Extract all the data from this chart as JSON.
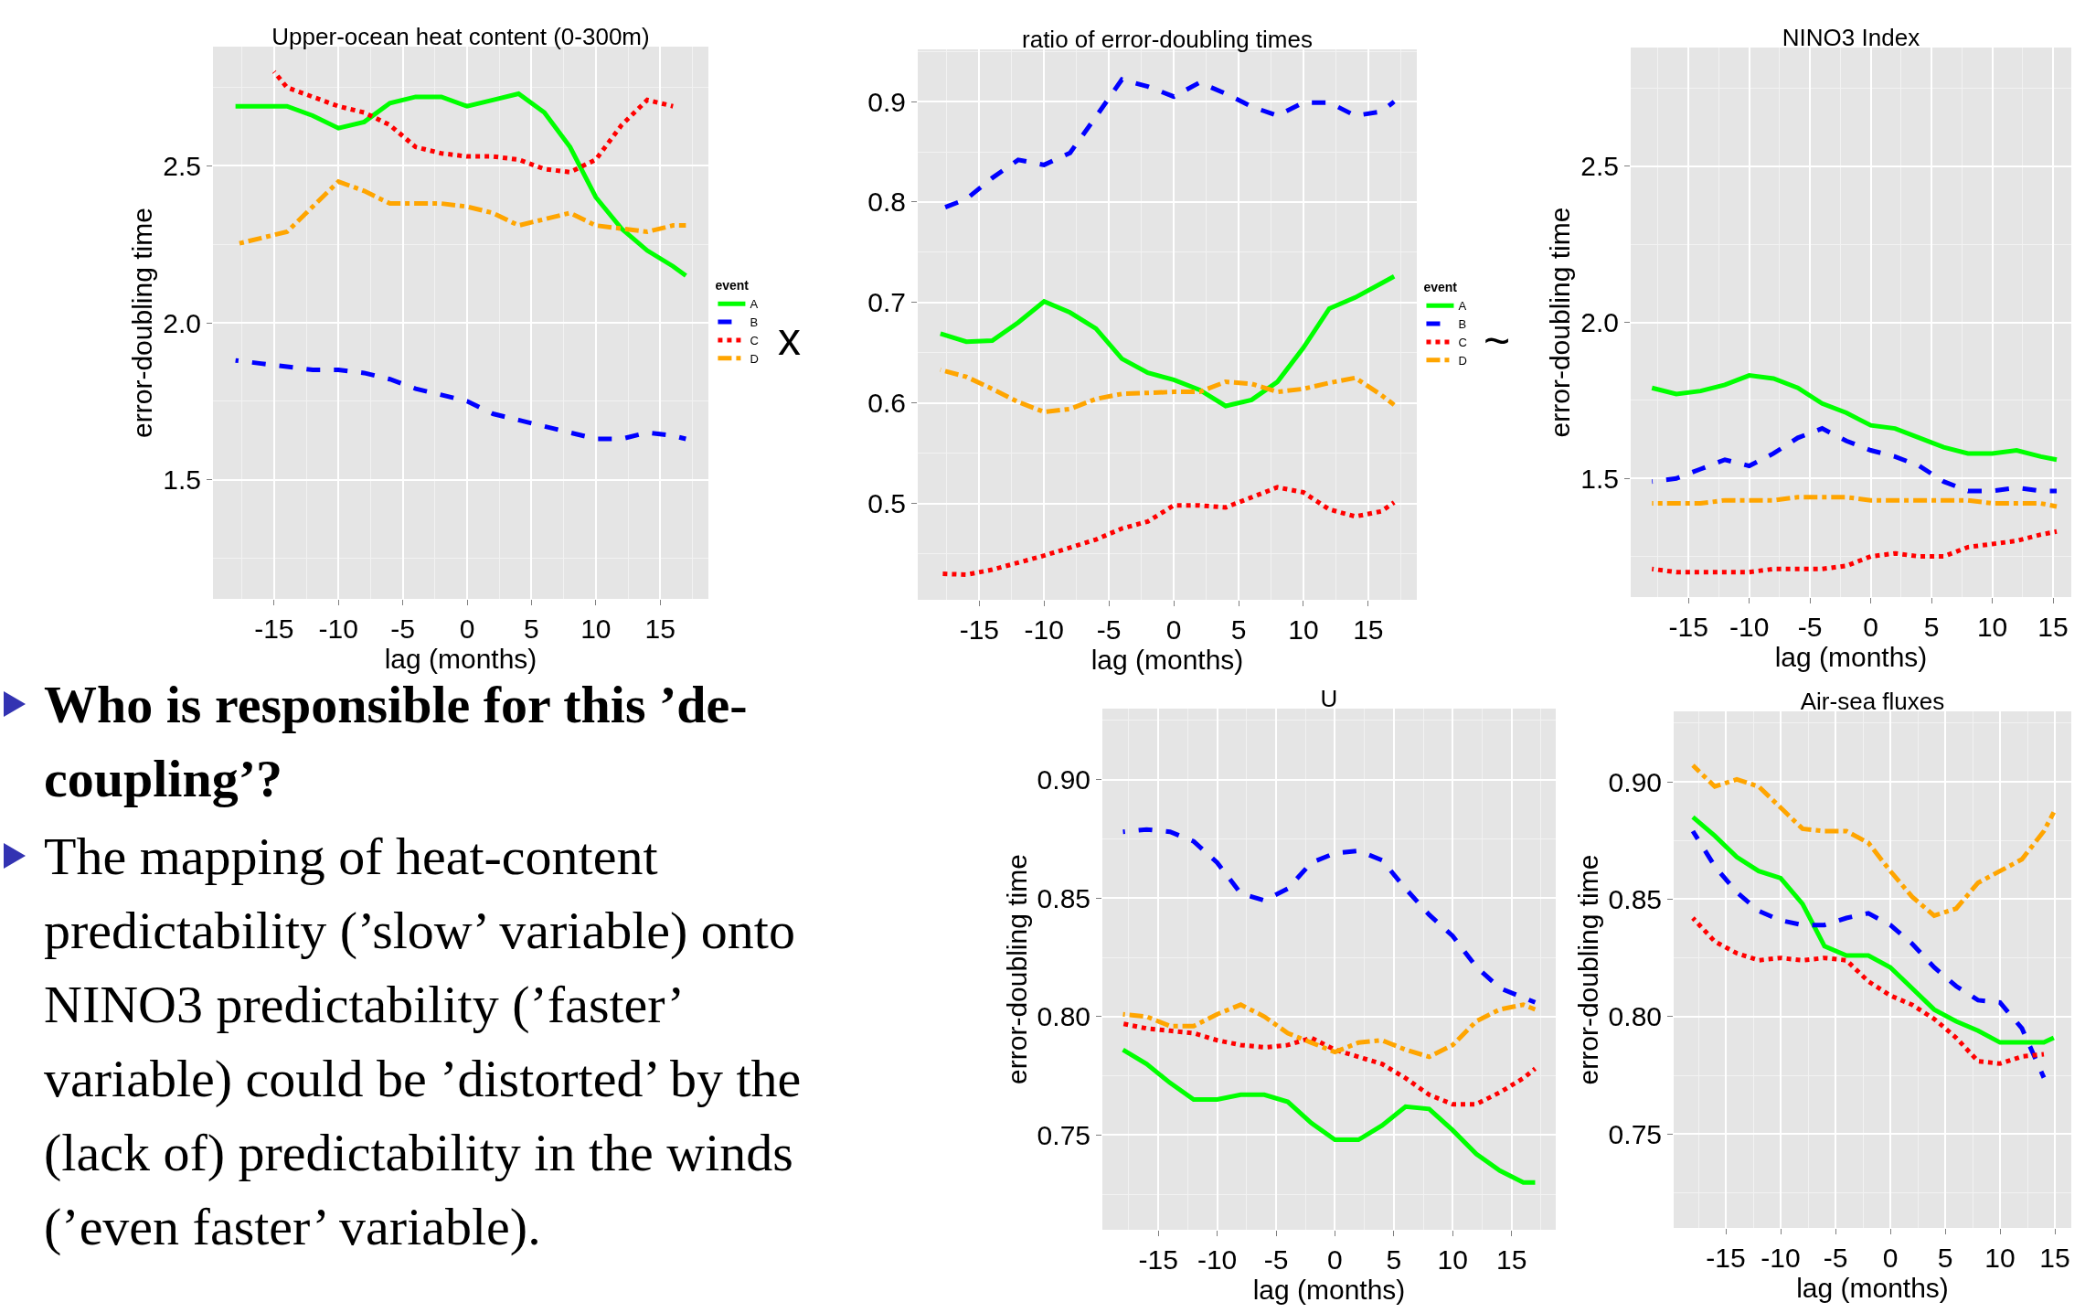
{
  "chart_data": [
    {
      "type": "line",
      "title": "Upper-ocean heat content (0-300m)",
      "xlabel": "lag (months)",
      "ylabel": "error-doubling time",
      "legend": "right",
      "legend_title": "event",
      "grid": true,
      "annotations": [
        "x"
      ],
      "xlim": [
        -19.75,
        18.75
      ],
      "xticks": [
        -15,
        -10,
        -5,
        0,
        5,
        10,
        15
      ],
      "ylim": [
        1.12,
        2.88
      ],
      "yticks": [
        {
          "value": 1.5,
          "label": "1.5"
        },
        {
          "value": 2,
          "label": "2.0"
        },
        {
          "value": 2.5,
          "label": "2.5"
        }
      ],
      "x": [
        -18,
        -16,
        -14,
        -12,
        -10,
        -8,
        -6,
        -4,
        -2,
        0,
        2,
        4,
        6,
        8,
        10,
        12,
        14,
        16,
        17
      ],
      "series": [
        {
          "name": "A",
          "color": "#00ff00",
          "line_style": "solid",
          "values": [
            2.69,
            2.69,
            2.69,
            2.66,
            2.62,
            2.64,
            2.7,
            2.72,
            2.72,
            2.69,
            2.71,
            2.73,
            2.67,
            2.56,
            2.4,
            2.3,
            2.23,
            2.18,
            2.15
          ]
        },
        {
          "name": "B",
          "color": "#0000ff",
          "line_style": "dashed",
          "values": [
            1.88,
            1.87,
            1.86,
            1.85,
            1.85,
            1.84,
            1.82,
            1.79,
            1.77,
            1.75,
            1.71,
            1.69,
            1.67,
            1.65,
            1.63,
            1.63,
            1.65,
            1.64,
            1.63
          ]
        },
        {
          "name": "C",
          "color": "#ff0000",
          "line_style": "dotted",
          "x": [
            -15,
            -14,
            -12,
            -10,
            -8,
            -6,
            -4,
            -2,
            0,
            2,
            4,
            6,
            8,
            10,
            12,
            14,
            16
          ],
          "values": [
            2.8,
            2.75,
            2.72,
            2.69,
            2.67,
            2.63,
            2.56,
            2.54,
            2.53,
            2.53,
            2.52,
            2.49,
            2.48,
            2.52,
            2.63,
            2.71,
            2.69
          ]
        },
        {
          "name": "D",
          "color": "#ffa500",
          "line_style": "dashdot",
          "values": [
            2.25,
            2.27,
            2.29,
            2.37,
            2.45,
            2.42,
            2.38,
            2.38,
            2.38,
            2.37,
            2.35,
            2.31,
            2.33,
            2.35,
            2.31,
            2.3,
            2.29,
            2.31,
            2.31
          ]
        }
      ]
    },
    {
      "type": "line",
      "title": "ratio of error-doubling times",
      "xlabel": "lag (months)",
      "legend": "right",
      "legend_title": "event",
      "grid": true,
      "annotations": [
        "~"
      ],
      "xlim": [
        -19.75,
        18.75
      ],
      "xticks": [
        -15,
        -10,
        -5,
        0,
        5,
        10,
        15
      ],
      "ylim": [
        0.404,
        0.952
      ],
      "yticks": [
        0.5,
        0.6,
        0.7,
        0.8,
        0.9
      ],
      "x": [
        -18,
        -16,
        -14,
        -12,
        -10,
        -8,
        -6,
        -4,
        -2,
        0,
        2,
        4,
        6,
        8,
        10,
        12,
        14,
        16,
        17
      ],
      "series": [
        {
          "name": "A",
          "color": "#00ff00",
          "line_style": "solid",
          "values": [
            0.669,
            0.661,
            0.662,
            0.68,
            0.701,
            0.69,
            0.674,
            0.644,
            0.63,
            0.623,
            0.613,
            0.597,
            0.603,
            0.621,
            0.655,
            0.694,
            0.705,
            0.719,
            0.726
          ]
        },
        {
          "name": "B",
          "color": "#0000ff",
          "line_style": "dashed",
          "values": [
            0.793,
            0.803,
            0.824,
            0.842,
            0.837,
            0.849,
            0.885,
            0.922,
            0.915,
            0.905,
            0.919,
            0.908,
            0.895,
            0.886,
            0.899,
            0.899,
            0.886,
            0.89,
            0.9
          ]
        },
        {
          "name": "C",
          "color": "#ff0000",
          "line_style": "dotted",
          "values": [
            0.43,
            0.429,
            0.434,
            0.441,
            0.448,
            0.456,
            0.464,
            0.475,
            0.482,
            0.498,
            0.498,
            0.496,
            0.506,
            0.516,
            0.511,
            0.494,
            0.487,
            0.492,
            0.501
          ]
        },
        {
          "name": "D",
          "color": "#ffa500",
          "line_style": "dashdot",
          "values": [
            0.633,
            0.626,
            0.614,
            0.601,
            0.591,
            0.594,
            0.604,
            0.609,
            0.61,
            0.611,
            0.611,
            0.621,
            0.619,
            0.611,
            0.614,
            0.62,
            0.625,
            0.608,
            0.598
          ]
        }
      ]
    },
    {
      "type": "line",
      "title": "NINO3 Index",
      "xlabel": "lag (months)",
      "ylabel": "error-doubling time",
      "grid": true,
      "xlim": [
        -19.75,
        16.5
      ],
      "xticks": [
        -15,
        -10,
        -5,
        0,
        5,
        10,
        15
      ],
      "ylim": [
        1.12,
        2.88
      ],
      "yticks": [
        {
          "value": 1.5,
          "label": "1.5"
        },
        {
          "value": 2,
          "label": "2.0"
        },
        {
          "value": 2.5,
          "label": "2.5"
        }
      ],
      "x": [
        -18,
        -16,
        -14,
        -12,
        -10,
        -8,
        -6,
        -4,
        -2,
        0,
        2,
        4,
        6,
        8,
        10,
        12,
        14,
        15.3
      ],
      "series": [
        {
          "color": "#00ff00",
          "line_style": "solid",
          "values": [
            1.79,
            1.77,
            1.78,
            1.8,
            1.83,
            1.82,
            1.79,
            1.74,
            1.71,
            1.67,
            1.66,
            1.63,
            1.6,
            1.58,
            1.58,
            1.59,
            1.57,
            1.56
          ]
        },
        {
          "color": "#0000ff",
          "line_style": "dashed",
          "values": [
            1.49,
            1.5,
            1.53,
            1.56,
            1.54,
            1.58,
            1.63,
            1.66,
            1.62,
            1.59,
            1.57,
            1.54,
            1.49,
            1.46,
            1.46,
            1.47,
            1.46,
            1.46
          ]
        },
        {
          "color": "#ff0000",
          "line_style": "dotted",
          "values": [
            1.21,
            1.2,
            1.2,
            1.2,
            1.2,
            1.21,
            1.21,
            1.21,
            1.22,
            1.25,
            1.26,
            1.25,
            1.25,
            1.28,
            1.29,
            1.3,
            1.32,
            1.33
          ]
        },
        {
          "color": "#ffa500",
          "line_style": "dashdot",
          "values": [
            1.42,
            1.42,
            1.42,
            1.43,
            1.43,
            1.43,
            1.44,
            1.44,
            1.44,
            1.43,
            1.43,
            1.43,
            1.43,
            1.43,
            1.42,
            1.42,
            1.42,
            1.41
          ]
        }
      ]
    },
    {
      "type": "line",
      "title": "U",
      "xlabel": "lag (months)",
      "ylabel": "error-doubling time",
      "grid": true,
      "xlim": [
        -19.75,
        18.75
      ],
      "xticks": [
        -15,
        -10,
        -5,
        0,
        5,
        10,
        15
      ],
      "ylim": [
        0.71,
        0.93
      ],
      "yticks": [
        {
          "value": 0.75,
          "label": "0.75"
        },
        {
          "value": 0.8,
          "label": "0.80"
        },
        {
          "value": 0.85,
          "label": "0.85"
        },
        {
          "value": 0.9,
          "label": "0.90"
        }
      ],
      "x": [
        -18,
        -16,
        -14,
        -12,
        -10,
        -8,
        -6,
        -4,
        -2,
        0,
        2,
        4,
        6,
        8,
        10,
        12,
        14,
        16,
        17
      ],
      "series": [
        {
          "color": "#00ff00",
          "line_style": "solid",
          "values": [
            0.786,
            0.78,
            0.772,
            0.765,
            0.765,
            0.767,
            0.767,
            0.764,
            0.755,
            0.748,
            0.748,
            0.754,
            0.762,
            0.761,
            0.752,
            0.742,
            0.735,
            0.73,
            0.73
          ]
        },
        {
          "color": "#0000ff",
          "line_style": "dashed",
          "values": [
            0.878,
            0.879,
            0.878,
            0.874,
            0.865,
            0.852,
            0.849,
            0.854,
            0.865,
            0.869,
            0.87,
            0.866,
            0.854,
            0.843,
            0.834,
            0.821,
            0.812,
            0.808,
            0.806
          ]
        },
        {
          "color": "#ff0000",
          "line_style": "dotted",
          "values": [
            0.797,
            0.795,
            0.794,
            0.793,
            0.79,
            0.788,
            0.787,
            0.788,
            0.791,
            0.786,
            0.783,
            0.78,
            0.774,
            0.767,
            0.763,
            0.763,
            0.768,
            0.774,
            0.778
          ]
        },
        {
          "color": "#ffa500",
          "line_style": "dashdot",
          "values": [
            0.801,
            0.8,
            0.796,
            0.796,
            0.801,
            0.805,
            0.8,
            0.793,
            0.789,
            0.785,
            0.789,
            0.79,
            0.786,
            0.783,
            0.788,
            0.798,
            0.803,
            0.805,
            0.803
          ]
        }
      ]
    },
    {
      "type": "line",
      "title": "Air-sea fluxes",
      "xlabel": "lag (months)",
      "ylabel": "error-doubling time",
      "grid": true,
      "xlim": [
        -19.75,
        16.5
      ],
      "xticks": [
        -15,
        -10,
        -5,
        0,
        5,
        10,
        15
      ],
      "ylim": [
        0.71,
        0.93
      ],
      "yticks": [
        {
          "value": 0.75,
          "label": "0.75"
        },
        {
          "value": 0.8,
          "label": "0.80"
        },
        {
          "value": 0.85,
          "label": "0.85"
        },
        {
          "value": 0.9,
          "label": "0.90"
        }
      ],
      "x": [
        -18,
        -16,
        -14,
        -12,
        -10,
        -8,
        -6,
        -4,
        -2,
        0,
        2,
        4,
        6,
        8,
        10,
        12,
        14,
        14.9
      ],
      "series": [
        {
          "color": "#00ff00",
          "line_style": "solid",
          "values": [
            0.885,
            0.877,
            0.868,
            0.862,
            0.859,
            0.848,
            0.83,
            0.826,
            0.826,
            0.821,
            0.812,
            0.803,
            0.798,
            0.794,
            0.789,
            0.789,
            0.789,
            0.791
          ]
        },
        {
          "color": "#0000ff",
          "line_style": "dashed",
          "values": [
            0.879,
            0.864,
            0.853,
            0.845,
            0.841,
            0.839,
            0.839,
            0.842,
            0.844,
            0.839,
            0.831,
            0.821,
            0.813,
            0.807,
            0.806,
            0.795,
            0.774,
            null
          ]
        },
        {
          "color": "#ff0000",
          "line_style": "dotted",
          "values": [
            0.842,
            0.832,
            0.827,
            0.824,
            0.825,
            0.824,
            0.825,
            0.824,
            0.815,
            0.809,
            0.805,
            0.799,
            0.791,
            0.781,
            0.78,
            0.783,
            0.784,
            null
          ]
        },
        {
          "color": "#ffa500",
          "line_style": "dashdot",
          "values": [
            0.907,
            0.898,
            0.901,
            0.898,
            0.889,
            0.88,
            0.879,
            0.879,
            0.874,
            0.862,
            0.851,
            0.843,
            0.846,
            0.857,
            0.862,
            0.867,
            0.879,
            0.887
          ]
        }
      ]
    },
    {
      "type": "other",
      "annotations": [
        "Who is responsible for this ’de-coupling’?",
        "The mapping of heat-content predictability (’slow’ variable) onto NINO3 predictability (’faster’ variable) could be ’distorted’ by the (lack of) predictability in the winds (’even faster’ variable)."
      ]
    }
  ]
}
